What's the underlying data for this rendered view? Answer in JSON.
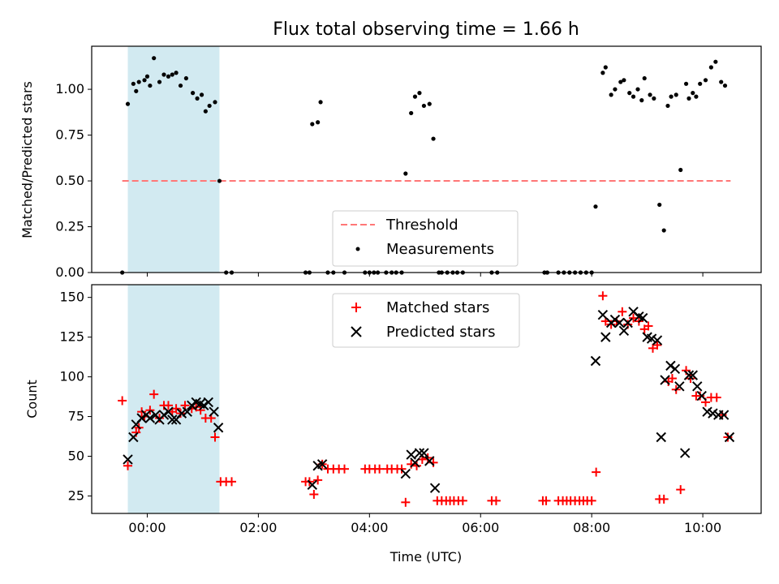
{
  "title": "Flux total observing time = 1.66 h",
  "shade_color": "#add8e6",
  "shade_range_hours": [
    -0.35,
    1.3
  ],
  "xlabel": "Time (UTC)",
  "x_ticks": [
    {
      "h": 0,
      "label": "00:00"
    },
    {
      "h": 2,
      "label": "02:00"
    },
    {
      "h": 4,
      "label": "04:00"
    },
    {
      "h": 6,
      "label": "06:00"
    },
    {
      "h": 8,
      "label": "08:00"
    },
    {
      "h": 10,
      "label": "10:00"
    }
  ],
  "chart_data": [
    {
      "type": "scatter",
      "panel": "top",
      "ylabel": "Matched/Predicted stars",
      "xlim": [
        -1.0,
        11.05
      ],
      "ylim": [
        0,
        1.235
      ],
      "y_ticks": [
        "0.00",
        "0.25",
        "0.50",
        "0.75",
        "1.00"
      ],
      "legend": {
        "position": "lower-center",
        "entries": [
          {
            "label": "Threshold",
            "color": "#ff7777",
            "marker": "dashed-line"
          },
          {
            "label": "Measurements",
            "color": "#000000",
            "marker": "dot"
          }
        ]
      },
      "threshold": {
        "value": 0.5,
        "x_range": [
          -0.45,
          10.5
        ],
        "color": "#ff7777"
      },
      "measurements": [
        [
          -0.45,
          0.0
        ],
        [
          -0.35,
          0.92
        ],
        [
          -0.25,
          1.03
        ],
        [
          -0.2,
          0.99
        ],
        [
          -0.15,
          1.04
        ],
        [
          -0.05,
          1.05
        ],
        [
          0.0,
          1.07
        ],
        [
          0.05,
          1.02
        ],
        [
          0.12,
          1.17
        ],
        [
          0.22,
          1.04
        ],
        [
          0.3,
          1.08
        ],
        [
          0.38,
          1.07
        ],
        [
          0.45,
          1.08
        ],
        [
          0.52,
          1.09
        ],
        [
          0.6,
          1.02
        ],
        [
          0.7,
          1.06
        ],
        [
          0.82,
          0.98
        ],
        [
          0.9,
          0.95
        ],
        [
          0.98,
          0.97
        ],
        [
          1.05,
          0.88
        ],
        [
          1.12,
          0.91
        ],
        [
          1.22,
          0.93
        ],
        [
          1.3,
          0.5
        ],
        [
          1.42,
          0.0
        ],
        [
          1.52,
          0.0
        ],
        [
          2.85,
          0.0
        ],
        [
          2.92,
          0.0
        ],
        [
          2.97,
          0.81
        ],
        [
          3.07,
          0.82
        ],
        [
          3.12,
          0.93
        ],
        [
          3.25,
          0.0
        ],
        [
          3.35,
          0.0
        ],
        [
          3.55,
          0.0
        ],
        [
          3.92,
          0.0
        ],
        [
          4.0,
          0.0
        ],
        [
          4.08,
          0.0
        ],
        [
          4.15,
          0.0
        ],
        [
          4.3,
          0.0
        ],
        [
          4.4,
          0.0
        ],
        [
          4.48,
          0.0
        ],
        [
          4.58,
          0.0
        ],
        [
          4.65,
          0.54
        ],
        [
          4.75,
          0.87
        ],
        [
          4.82,
          0.96
        ],
        [
          4.9,
          0.98
        ],
        [
          4.98,
          0.91
        ],
        [
          5.08,
          0.92
        ],
        [
          5.15,
          0.73
        ],
        [
          5.25,
          0.0
        ],
        [
          5.3,
          0.0
        ],
        [
          5.4,
          0.0
        ],
        [
          5.5,
          0.0
        ],
        [
          5.58,
          0.0
        ],
        [
          5.68,
          0.0
        ],
        [
          6.2,
          0.0
        ],
        [
          6.3,
          0.0
        ],
        [
          7.15,
          0.0
        ],
        [
          7.2,
          0.0
        ],
        [
          7.4,
          0.0
        ],
        [
          7.5,
          0.0
        ],
        [
          7.6,
          0.0
        ],
        [
          7.7,
          0.0
        ],
        [
          7.8,
          0.0
        ],
        [
          7.9,
          0.0
        ],
        [
          8.0,
          0.0
        ],
        [
          8.07,
          0.36
        ],
        [
          8.2,
          1.09
        ],
        [
          8.25,
          1.12
        ],
        [
          8.35,
          0.97
        ],
        [
          8.42,
          1.0
        ],
        [
          8.52,
          1.04
        ],
        [
          8.58,
          1.05
        ],
        [
          8.68,
          0.98
        ],
        [
          8.75,
          0.96
        ],
        [
          8.83,
          1.0
        ],
        [
          8.9,
          0.94
        ],
        [
          8.95,
          1.06
        ],
        [
          9.05,
          0.97
        ],
        [
          9.12,
          0.95
        ],
        [
          9.22,
          0.37
        ],
        [
          9.3,
          0.23
        ],
        [
          9.37,
          0.91
        ],
        [
          9.43,
          0.96
        ],
        [
          9.52,
          0.97
        ],
        [
          9.6,
          0.56
        ],
        [
          9.7,
          1.03
        ],
        [
          9.75,
          0.95
        ],
        [
          9.82,
          0.98
        ],
        [
          9.88,
          0.96
        ],
        [
          9.95,
          1.03
        ],
        [
          10.05,
          1.05
        ],
        [
          10.15,
          1.12
        ],
        [
          10.23,
          1.15
        ],
        [
          10.33,
          1.04
        ],
        [
          10.4,
          1.02
        ]
      ]
    },
    {
      "type": "scatter",
      "panel": "bottom",
      "ylabel": "Count",
      "xlim": [
        -1.0,
        11.05
      ],
      "ylim": [
        14,
        158
      ],
      "y_ticks": [
        "25",
        "50",
        "75",
        "100",
        "125",
        "150"
      ],
      "legend": {
        "position": "top-center",
        "entries": [
          {
            "label": "Matched stars",
            "color": "#ff0000",
            "marker": "plus"
          },
          {
            "label": "Predicted stars",
            "color": "#000000",
            "marker": "x"
          }
        ]
      },
      "series": [
        {
          "name": "Matched stars",
          "color": "#ff0000",
          "marker": "plus",
          "points": [
            [
              -0.45,
              85
            ],
            [
              -0.35,
              44
            ],
            [
              -0.2,
              65
            ],
            [
              -0.15,
              68
            ],
            [
              -0.1,
              78
            ],
            [
              -0.05,
              75
            ],
            [
              0.05,
              79
            ],
            [
              0.12,
              89
            ],
            [
              0.22,
              74
            ],
            [
              0.3,
              82
            ],
            [
              0.38,
              82
            ],
            [
              0.45,
              78
            ],
            [
              0.52,
              80
            ],
            [
              0.6,
              77
            ],
            [
              0.68,
              82
            ],
            [
              0.8,
              80
            ],
            [
              0.88,
              81
            ],
            [
              0.96,
              79
            ],
            [
              1.05,
              74
            ],
            [
              1.15,
              74
            ],
            [
              1.22,
              62
            ],
            [
              1.32,
              34
            ],
            [
              1.42,
              34
            ],
            [
              1.52,
              34
            ],
            [
              2.85,
              34
            ],
            [
              2.92,
              34
            ],
            [
              3.0,
              26
            ],
            [
              3.07,
              35
            ],
            [
              3.15,
              45
            ],
            [
              3.25,
              42
            ],
            [
              3.35,
              42
            ],
            [
              3.45,
              42
            ],
            [
              3.55,
              42
            ],
            [
              3.92,
              42
            ],
            [
              4.0,
              42
            ],
            [
              4.1,
              42
            ],
            [
              4.18,
              42
            ],
            [
              4.32,
              42
            ],
            [
              4.4,
              42
            ],
            [
              4.5,
              42
            ],
            [
              4.58,
              42
            ],
            [
              4.65,
              21
            ],
            [
              4.75,
              45
            ],
            [
              4.85,
              44
            ],
            [
              4.95,
              48
            ],
            [
              5.05,
              49
            ],
            [
              5.15,
              46
            ],
            [
              5.22,
              22
            ],
            [
              5.3,
              22
            ],
            [
              5.38,
              22
            ],
            [
              5.45,
              22
            ],
            [
              5.52,
              22
            ],
            [
              5.6,
              22
            ],
            [
              5.68,
              22
            ],
            [
              6.2,
              22
            ],
            [
              6.28,
              22
            ],
            [
              7.12,
              22
            ],
            [
              7.18,
              22
            ],
            [
              7.4,
              22
            ],
            [
              7.48,
              22
            ],
            [
              7.55,
              22
            ],
            [
              7.62,
              22
            ],
            [
              7.7,
              22
            ],
            [
              7.78,
              22
            ],
            [
              7.85,
              22
            ],
            [
              7.92,
              22
            ],
            [
              8.0,
              22
            ],
            [
              8.08,
              40
            ],
            [
              8.2,
              151
            ],
            [
              8.25,
              135
            ],
            [
              8.35,
              133
            ],
            [
              8.45,
              135
            ],
            [
              8.55,
              141
            ],
            [
              8.65,
              133
            ],
            [
              8.75,
              137
            ],
            [
              8.85,
              135
            ],
            [
              8.95,
              130
            ],
            [
              9.02,
              132
            ],
            [
              9.1,
              118
            ],
            [
              9.18,
              120
            ],
            [
              9.22,
              23
            ],
            [
              9.3,
              23
            ],
            [
              9.38,
              97
            ],
            [
              9.45,
              99
            ],
            [
              9.52,
              92
            ],
            [
              9.6,
              29
            ],
            [
              9.7,
              104
            ],
            [
              9.78,
              99
            ],
            [
              9.88,
              88
            ],
            [
              9.95,
              88
            ],
            [
              10.05,
              84
            ],
            [
              10.15,
              87
            ],
            [
              10.25,
              87
            ],
            [
              10.35,
              76
            ],
            [
              10.45,
              62
            ]
          ]
        },
        {
          "name": "Predicted stars",
          "color": "#000000",
          "marker": "x",
          "points": [
            [
              -0.35,
              48
            ],
            [
              -0.25,
              62
            ],
            [
              -0.2,
              70
            ],
            [
              -0.1,
              74
            ],
            [
              -0.02,
              76
            ],
            [
              0.05,
              74
            ],
            [
              0.15,
              76
            ],
            [
              0.22,
              73
            ],
            [
              0.3,
              76
            ],
            [
              0.38,
              78
            ],
            [
              0.45,
              73
            ],
            [
              0.52,
              73
            ],
            [
              0.62,
              77
            ],
            [
              0.72,
              78
            ],
            [
              0.8,
              82
            ],
            [
              0.88,
              84
            ],
            [
              0.95,
              83
            ],
            [
              1.02,
              82
            ],
            [
              1.1,
              84
            ],
            [
              1.2,
              78
            ],
            [
              1.28,
              68
            ],
            [
              2.97,
              32
            ],
            [
              3.07,
              44
            ],
            [
              3.15,
              45
            ],
            [
              4.65,
              39
            ],
            [
              4.75,
              51
            ],
            [
              4.82,
              46
            ],
            [
              4.9,
              52
            ],
            [
              4.98,
              52
            ],
            [
              5.08,
              47
            ],
            [
              5.18,
              30
            ],
            [
              8.07,
              110
            ],
            [
              8.2,
              139
            ],
            [
              8.25,
              125
            ],
            [
              8.35,
              134
            ],
            [
              8.42,
              136
            ],
            [
              8.5,
              134
            ],
            [
              8.58,
              129
            ],
            [
              8.65,
              134
            ],
            [
              8.75,
              141
            ],
            [
              8.85,
              138
            ],
            [
              8.92,
              137
            ],
            [
              9.0,
              125
            ],
            [
              9.08,
              124
            ],
            [
              9.18,
              123
            ],
            [
              9.25,
              62
            ],
            [
              9.32,
              98
            ],
            [
              9.42,
              107
            ],
            [
              9.5,
              105
            ],
            [
              9.58,
              94
            ],
            [
              9.68,
              52
            ],
            [
              9.75,
              101
            ],
            [
              9.82,
              101
            ],
            [
              9.9,
              94
            ],
            [
              9.98,
              88
            ],
            [
              10.08,
              78
            ],
            [
              10.18,
              77
            ],
            [
              10.28,
              76
            ],
            [
              10.38,
              76
            ],
            [
              10.48,
              62
            ]
          ]
        }
      ]
    }
  ]
}
